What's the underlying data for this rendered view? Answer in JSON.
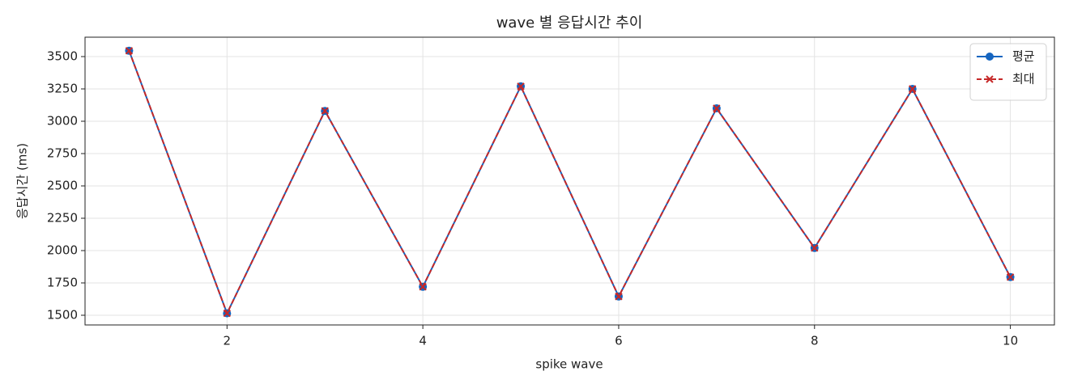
{
  "chart_data": {
    "type": "line",
    "title": "wave 별 응답시간 추이",
    "x_label": "spike wave",
    "y_label": "응답시간 (ms)",
    "x": [
      1,
      2,
      3,
      4,
      5,
      6,
      7,
      8,
      9,
      10
    ],
    "series": [
      {
        "name": "평균",
        "color": "#1565c0",
        "marker": "o",
        "dash": false,
        "values": [
          3545,
          1515,
          3080,
          1720,
          3270,
          1645,
          3100,
          2020,
          3250,
          1795
        ]
      },
      {
        "name": "최대",
        "color": "#c62828",
        "marker": "x",
        "dash": true,
        "values": [
          3545,
          1515,
          3080,
          1720,
          3270,
          1645,
          3100,
          2020,
          3250,
          1795
        ]
      }
    ],
    "xlim": [
      0.55,
      10.45
    ],
    "ylim": [
      1425,
      3650
    ],
    "xticks": [
      2,
      4,
      6,
      8,
      10
    ],
    "yticks": [
      1500,
      1750,
      2000,
      2250,
      2500,
      2750,
      3000,
      3250,
      3500
    ],
    "grid": true,
    "legend": "upper right"
  }
}
